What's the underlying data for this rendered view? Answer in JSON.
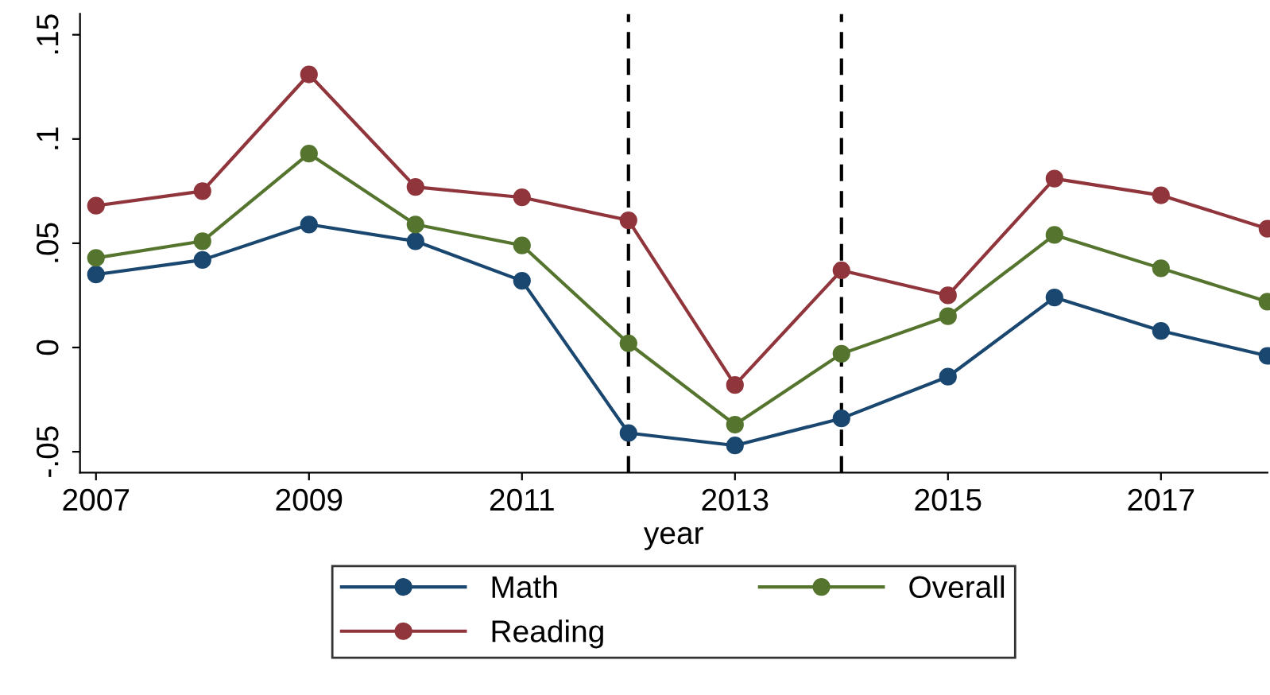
{
  "chart_data": {
    "type": "line",
    "xlabel": "year",
    "x": [
      2007,
      2008,
      2009,
      2010,
      2011,
      2012,
      2013,
      2014,
      2015,
      2016,
      2017,
      2018
    ],
    "series": [
      {
        "name": "Math",
        "color": "#1a476f",
        "values": [
          0.035,
          0.042,
          0.059,
          0.051,
          0.032,
          -0.041,
          -0.047,
          -0.034,
          -0.014,
          0.024,
          0.008,
          -0.004
        ]
      },
      {
        "name": "Reading",
        "color": "#90353b",
        "values": [
          0.068,
          0.075,
          0.131,
          0.077,
          0.072,
          0.061,
          -0.018,
          0.037,
          0.025,
          0.081,
          0.073,
          0.057
        ]
      },
      {
        "name": "Overall",
        "color": "#55752f",
        "values": [
          0.043,
          0.051,
          0.093,
          0.059,
          0.049,
          0.002,
          -0.037,
          -0.003,
          0.015,
          0.054,
          0.038,
          0.022
        ]
      }
    ],
    "xlim": [
      2006.85,
      2018
    ],
    "ylim": [
      -0.06,
      0.16
    ],
    "xticks": [
      2007,
      2009,
      2011,
      2013,
      2015,
      2017
    ],
    "yticks": [
      {
        "value": -0.05,
        "label": "-.05"
      },
      {
        "value": 0,
        "label": "0"
      },
      {
        "value": 0.05,
        "label": ".05"
      },
      {
        "value": 0.1,
        "label": ".1"
      },
      {
        "value": 0.15,
        "label": ".15"
      }
    ],
    "ref_lines": [
      {
        "axis": "x",
        "value": 2012,
        "color": "#000000",
        "line_style": "dashed"
      },
      {
        "axis": "x",
        "value": 2014,
        "color": "#000000",
        "line_style": "dashed"
      }
    ],
    "marker": "circle",
    "line_style": "solid",
    "grid": false,
    "legend": "bottom"
  }
}
